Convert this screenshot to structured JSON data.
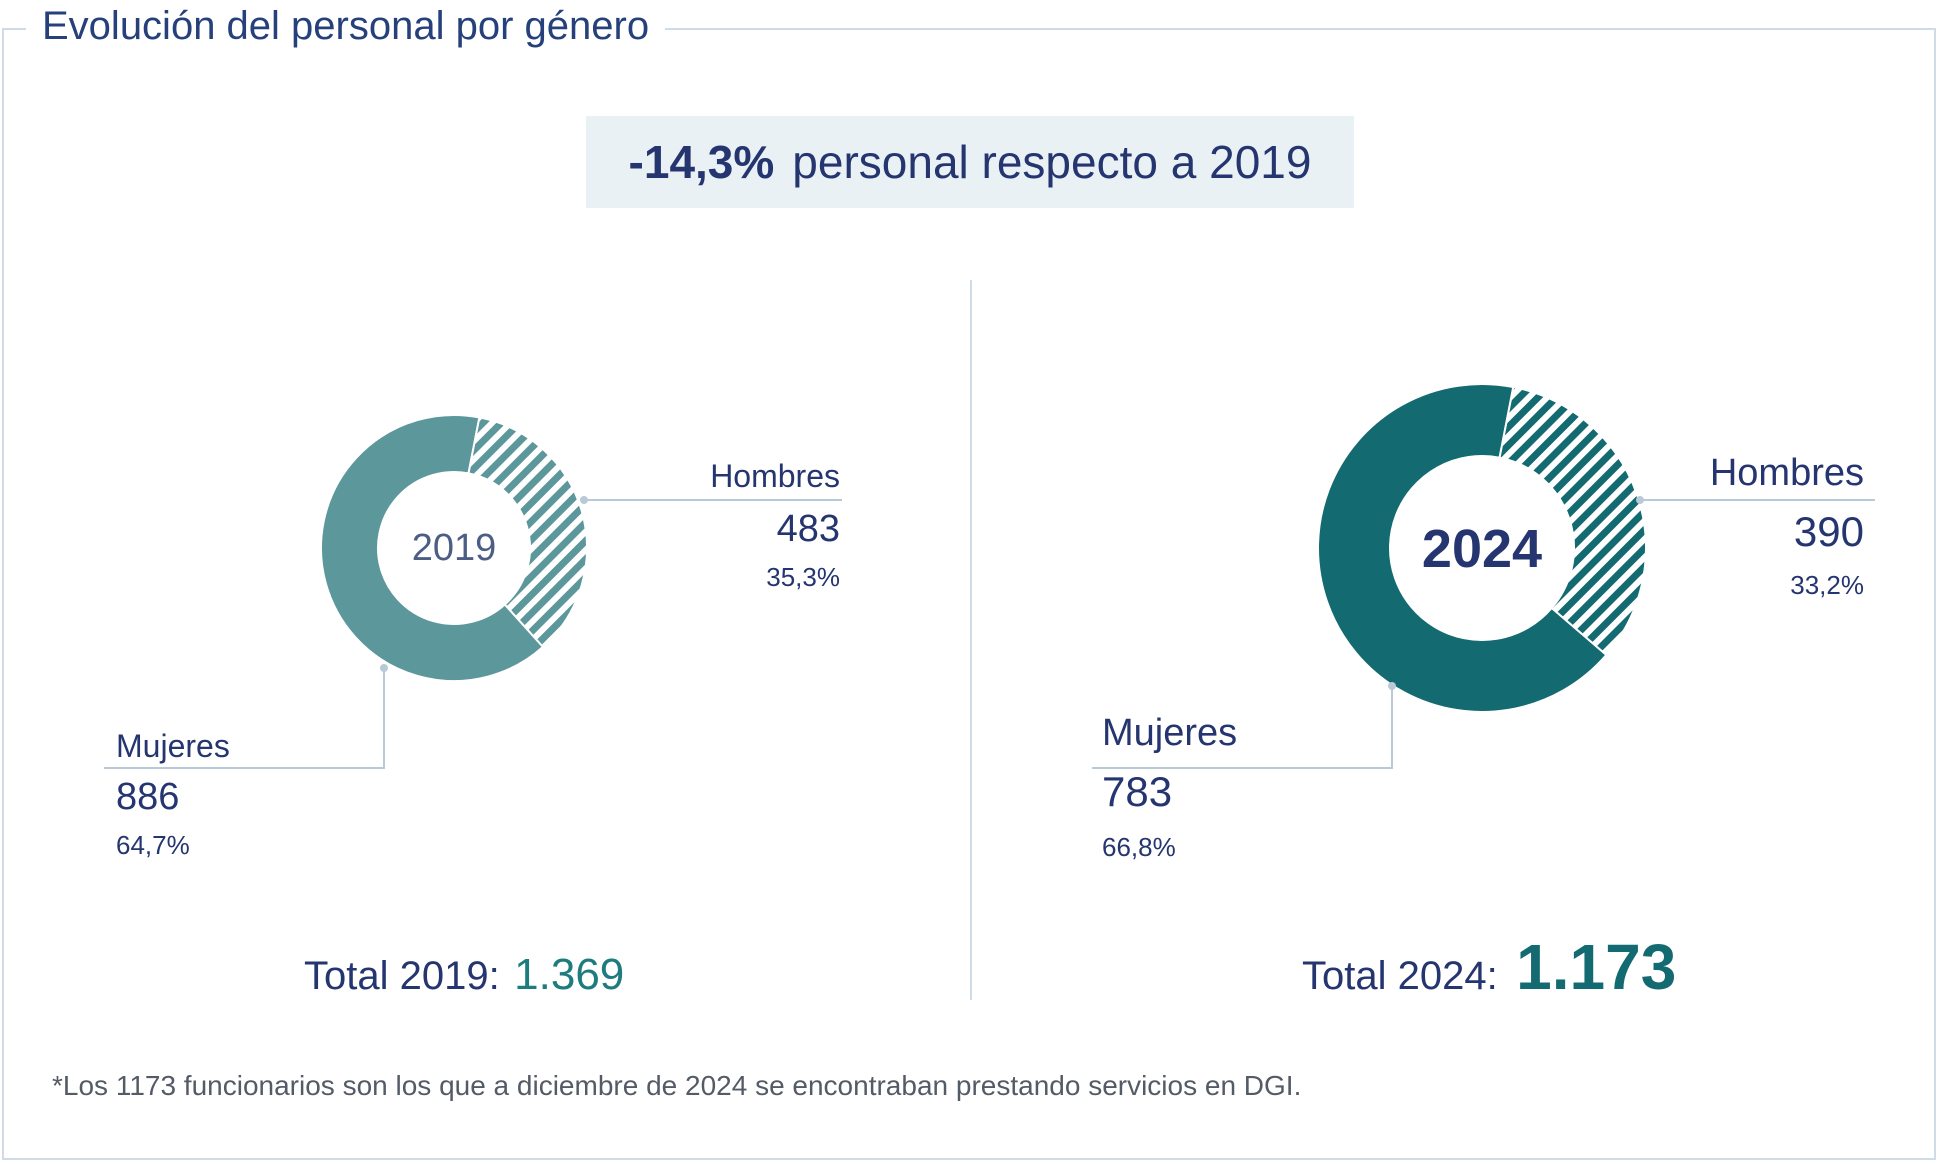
{
  "title": "Evolución del personal por género",
  "summary": {
    "change": "-14,3%",
    "text": "personal respecto a 2019"
  },
  "chart_data": [
    {
      "type": "pie",
      "donut": true,
      "center_label": "2019",
      "categories": [
        "Mujeres",
        "Hombres"
      ],
      "values": [
        886,
        483
      ],
      "percent_labels": [
        "64,7%",
        "35,3%"
      ],
      "value_labels": [
        "886",
        "483"
      ],
      "total_label": "Total 2019:",
      "total_value": "1.369",
      "colors": {
        "mujeres": "#5b979b",
        "hombres": "#5b979b"
      }
    },
    {
      "type": "pie",
      "donut": true,
      "center_label": "2024",
      "categories": [
        "Mujeres",
        "Hombres"
      ],
      "values": [
        783,
        390
      ],
      "percent_labels": [
        "66,8%",
        "33,2%"
      ],
      "value_labels": [
        "783",
        "390"
      ],
      "total_label": "Total 2024:",
      "total_value": "1.173",
      "colors": {
        "mujeres": "#136a70",
        "hombres": "#136a70"
      }
    }
  ],
  "footnote": "*Los 1173 funcionarios son los que a diciembre de 2024 se encontraban prestando servicios en DGI."
}
